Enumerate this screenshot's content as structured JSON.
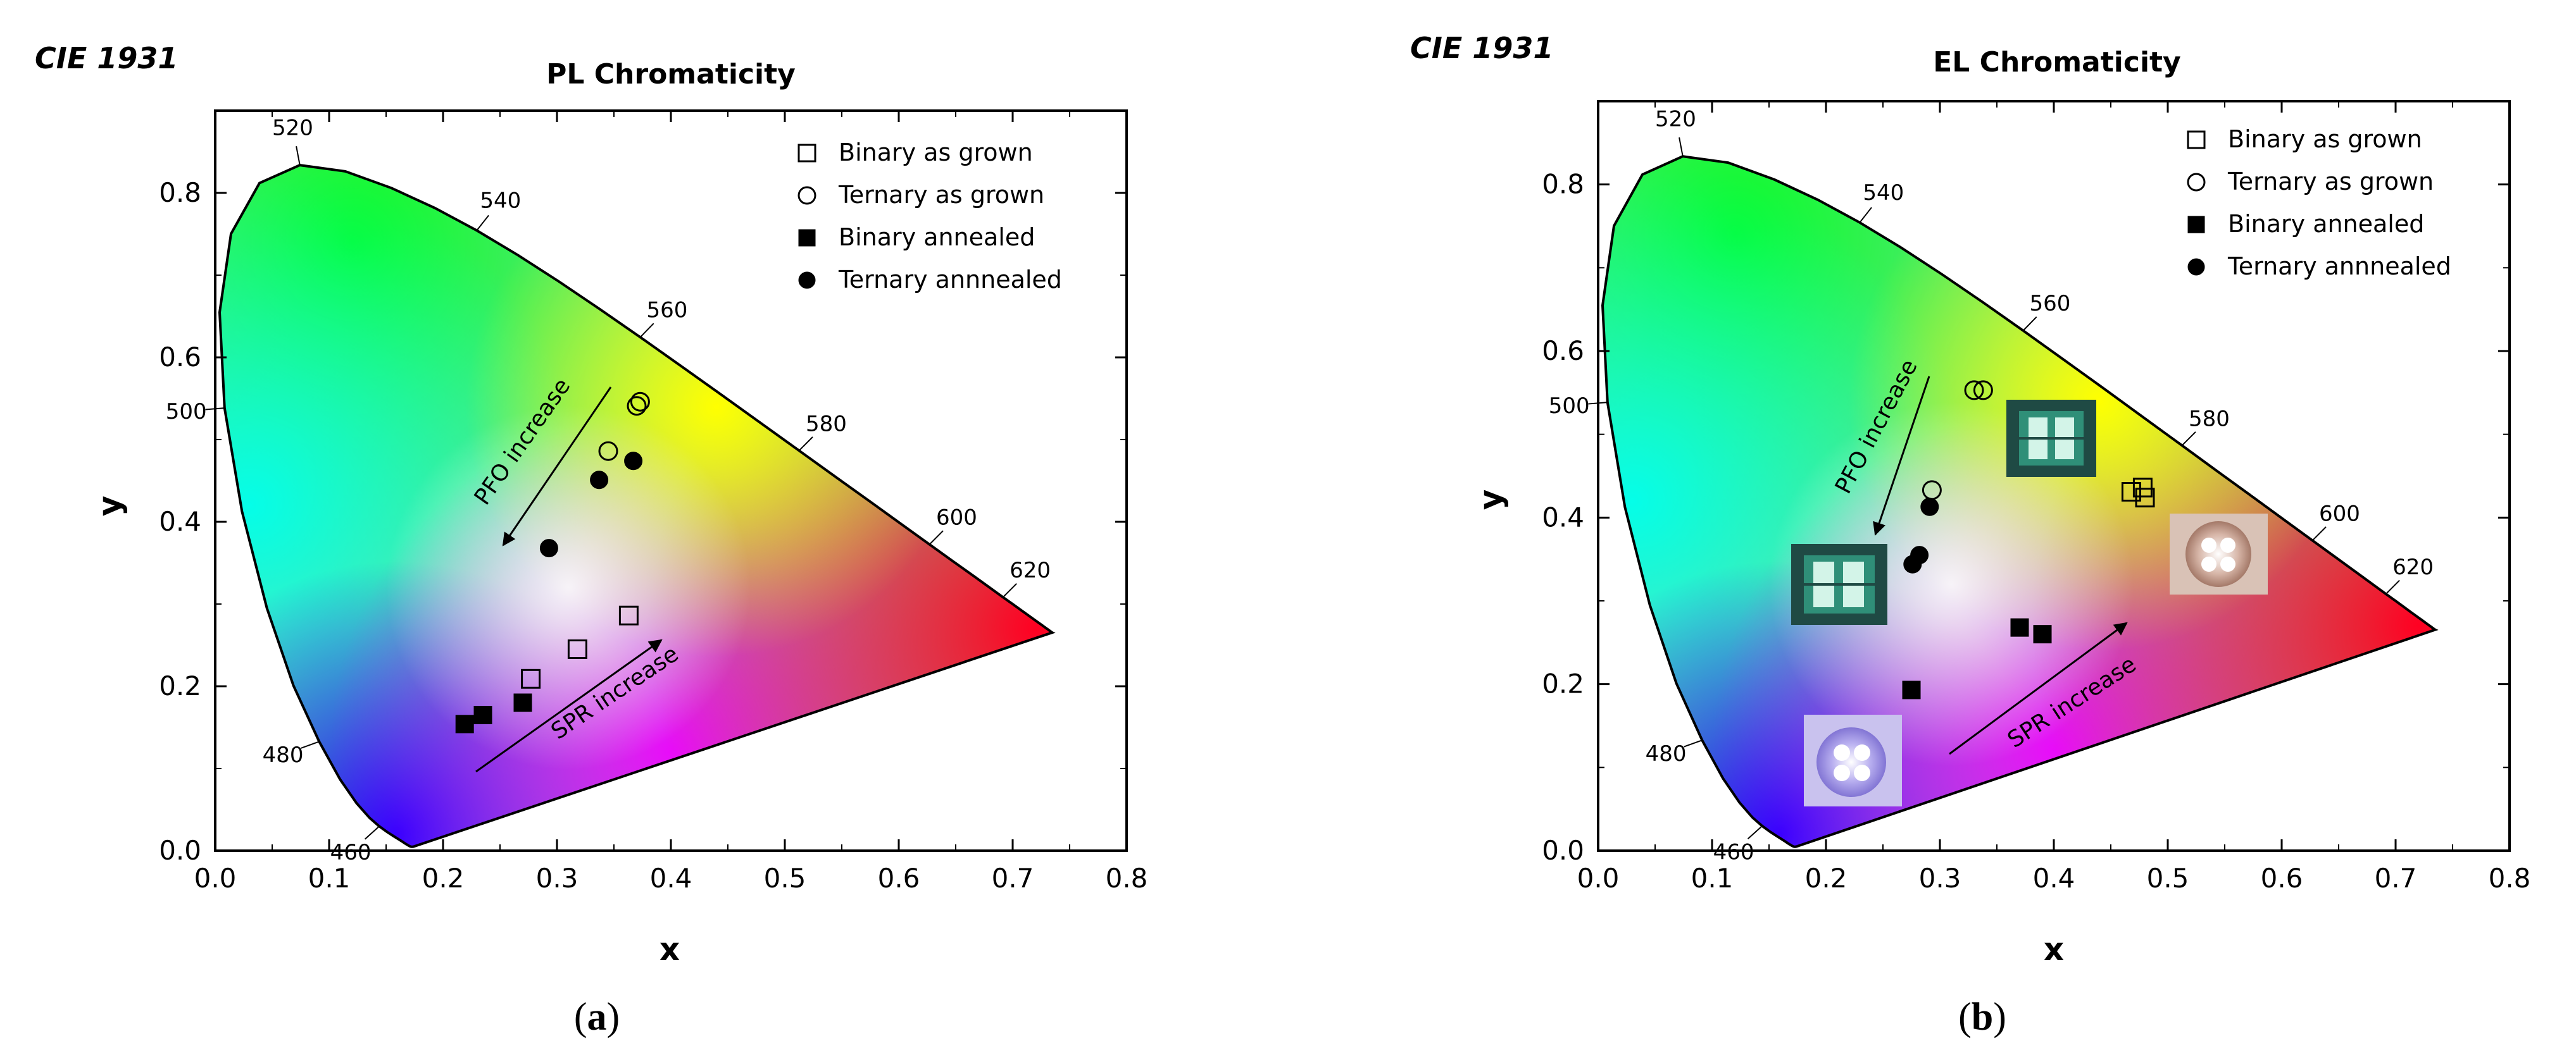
{
  "colors": {
    "axis": "#000000",
    "marker": "#000000",
    "background": "#ffffff",
    "led_blue": "#9a8ee0",
    "led_green": "#2f8f78",
    "led_warm": "#c8a08c"
  },
  "chart_data": [
    {
      "type": "scatter",
      "panel_label": "a",
      "cie_label": "CIE 1931",
      "title": "PL Chromaticity",
      "xlabel": "x",
      "ylabel": "y",
      "xlim": [
        0.0,
        0.8
      ],
      "ylim": [
        0.0,
        0.9
      ],
      "xticks": [
        "0.0",
        "0.1",
        "0.2",
        "0.3",
        "0.4",
        "0.5",
        "0.6",
        "0.7",
        "0.8"
      ],
      "yticks": [
        "0.0",
        "0.2",
        "0.4",
        "0.6",
        "0.8"
      ],
      "legend_position": "top-right",
      "wavelength_labels": [
        "460",
        "480",
        "500",
        "520",
        "540",
        "560",
        "580",
        "600",
        "620"
      ],
      "series": [
        {
          "name": "Binary as grown",
          "marker": "square-open",
          "points": [
            [
              0.277,
              0.209
            ],
            [
              0.318,
              0.245
            ],
            [
              0.363,
              0.286
            ]
          ]
        },
        {
          "name": "Ternary as grown",
          "marker": "circle-open",
          "points": [
            [
              0.345,
              0.486
            ],
            [
              0.37,
              0.541
            ],
            [
              0.373,
              0.546
            ]
          ]
        },
        {
          "name": "Binary annealed",
          "marker": "square-filled",
          "points": [
            [
              0.219,
              0.154
            ],
            [
              0.235,
              0.165
            ],
            [
              0.27,
              0.18
            ]
          ]
        },
        {
          "name": "Ternary annnealed",
          "marker": "circle-filled",
          "points": [
            [
              0.293,
              0.368
            ],
            [
              0.337,
              0.451
            ],
            [
              0.367,
              0.474
            ]
          ]
        }
      ],
      "annotations": [
        "PFO increase",
        "SPR increase"
      ]
    },
    {
      "type": "scatter",
      "panel_label": "b",
      "cie_label": "CIE 1931",
      "title": "EL Chromaticity",
      "xlabel": "x",
      "ylabel": "y",
      "xlim": [
        0.0,
        0.8
      ],
      "ylim": [
        0.0,
        0.9
      ],
      "xticks": [
        "0.0",
        "0.1",
        "0.2",
        "0.3",
        "0.4",
        "0.5",
        "0.6",
        "0.7",
        "0.8"
      ],
      "yticks": [
        "0.0",
        "0.2",
        "0.4",
        "0.6",
        "0.8"
      ],
      "legend_position": "top-right",
      "wavelength_labels": [
        "460",
        "480",
        "500",
        "520",
        "540",
        "560",
        "580",
        "600",
        "620"
      ],
      "series": [
        {
          "name": "Binary as grown",
          "marker": "square-open",
          "points": [
            [
              0.468,
              0.431
            ],
            [
              0.478,
              0.436
            ],
            [
              0.48,
              0.424
            ]
          ]
        },
        {
          "name": "Ternary as grown",
          "marker": "circle-open",
          "points": [
            [
              0.293,
              0.433
            ],
            [
              0.33,
              0.553
            ],
            [
              0.338,
              0.553
            ]
          ]
        },
        {
          "name": "Binary annealed",
          "marker": "square-filled",
          "points": [
            [
              0.275,
              0.193
            ],
            [
              0.37,
              0.268
            ],
            [
              0.39,
              0.26
            ]
          ]
        },
        {
          "name": "Ternary annnealed",
          "marker": "circle-filled",
          "points": [
            [
              0.276,
              0.344
            ],
            [
              0.282,
              0.355
            ],
            [
              0.291,
              0.413
            ]
          ]
        }
      ],
      "annotations": [
        "PFO increase",
        "SPR increase"
      ]
    }
  ]
}
